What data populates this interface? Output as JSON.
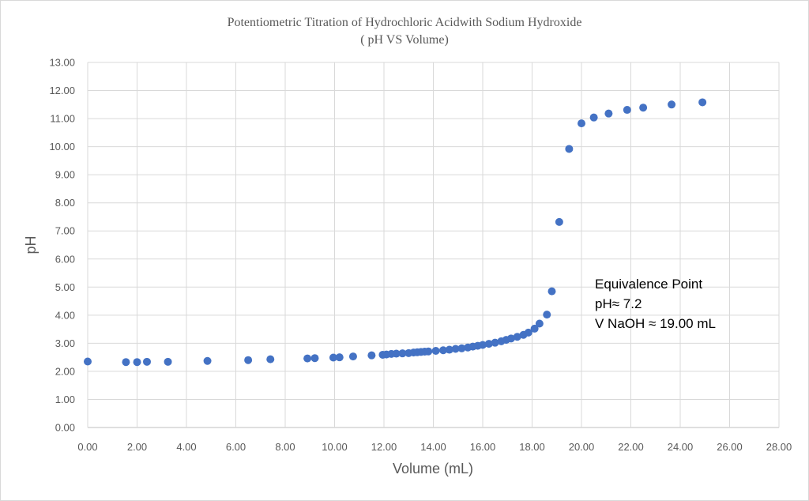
{
  "chart_data": {
    "type": "scatter",
    "title": "Potentiometric Titration of Hydrochloric Acidwith Sodium Hydroxide",
    "subtitle": "( pH VS Volume)",
    "xlabel": "Volume (mL)",
    "ylabel": "pH",
    "xlim": [
      0,
      28
    ],
    "ylim": [
      0,
      13
    ],
    "x_ticks": [
      "0.00",
      "2.00",
      "4.00",
      "6.00",
      "8.00",
      "10.00",
      "12.00",
      "14.00",
      "16.00",
      "18.00",
      "20.00",
      "22.00",
      "24.00",
      "26.00",
      "28.00"
    ],
    "y_ticks": [
      "0.00",
      "1.00",
      "2.00",
      "3.00",
      "4.00",
      "5.00",
      "6.00",
      "7.00",
      "8.00",
      "9.00",
      "10.00",
      "11.00",
      "12.00",
      "13.00"
    ],
    "grid": true,
    "legend": "none",
    "marker_color": "#4472C4",
    "annotation": [
      "Equivalence Point",
      "pH≈ 7.2",
      "V NaOH ≈ 19.00 mL"
    ],
    "points": [
      [
        0.0,
        2.35
      ],
      [
        1.55,
        2.33
      ],
      [
        2.0,
        2.33
      ],
      [
        2.4,
        2.34
      ],
      [
        3.25,
        2.34
      ],
      [
        4.85,
        2.37
      ],
      [
        6.5,
        2.4
      ],
      [
        7.4,
        2.43
      ],
      [
        8.9,
        2.46
      ],
      [
        9.2,
        2.47
      ],
      [
        9.95,
        2.49
      ],
      [
        10.2,
        2.5
      ],
      [
        10.75,
        2.53
      ],
      [
        11.5,
        2.57
      ],
      [
        11.95,
        2.59
      ],
      [
        12.1,
        2.6
      ],
      [
        12.3,
        2.62
      ],
      [
        12.5,
        2.63
      ],
      [
        12.75,
        2.64
      ],
      [
        13.0,
        2.65
      ],
      [
        13.2,
        2.67
      ],
      [
        13.35,
        2.68
      ],
      [
        13.5,
        2.69
      ],
      [
        13.65,
        2.7
      ],
      [
        13.8,
        2.71
      ],
      [
        14.1,
        2.73
      ],
      [
        14.4,
        2.75
      ],
      [
        14.65,
        2.77
      ],
      [
        14.9,
        2.8
      ],
      [
        15.15,
        2.82
      ],
      [
        15.4,
        2.85
      ],
      [
        15.6,
        2.88
      ],
      [
        15.8,
        2.91
      ],
      [
        16.0,
        2.94
      ],
      [
        16.25,
        2.98
      ],
      [
        16.5,
        3.02
      ],
      [
        16.75,
        3.07
      ],
      [
        16.95,
        3.12
      ],
      [
        17.15,
        3.17
      ],
      [
        17.4,
        3.23
      ],
      [
        17.65,
        3.3
      ],
      [
        17.85,
        3.38
      ],
      [
        18.1,
        3.52
      ],
      [
        18.3,
        3.7
      ],
      [
        18.6,
        4.02
      ],
      [
        18.8,
        4.85
      ],
      [
        19.1,
        7.32
      ],
      [
        19.5,
        9.92
      ],
      [
        20.0,
        10.83
      ],
      [
        20.5,
        11.04
      ],
      [
        21.1,
        11.18
      ],
      [
        21.85,
        11.31
      ],
      [
        22.5,
        11.39
      ],
      [
        23.65,
        11.5
      ],
      [
        24.9,
        11.58
      ]
    ]
  }
}
